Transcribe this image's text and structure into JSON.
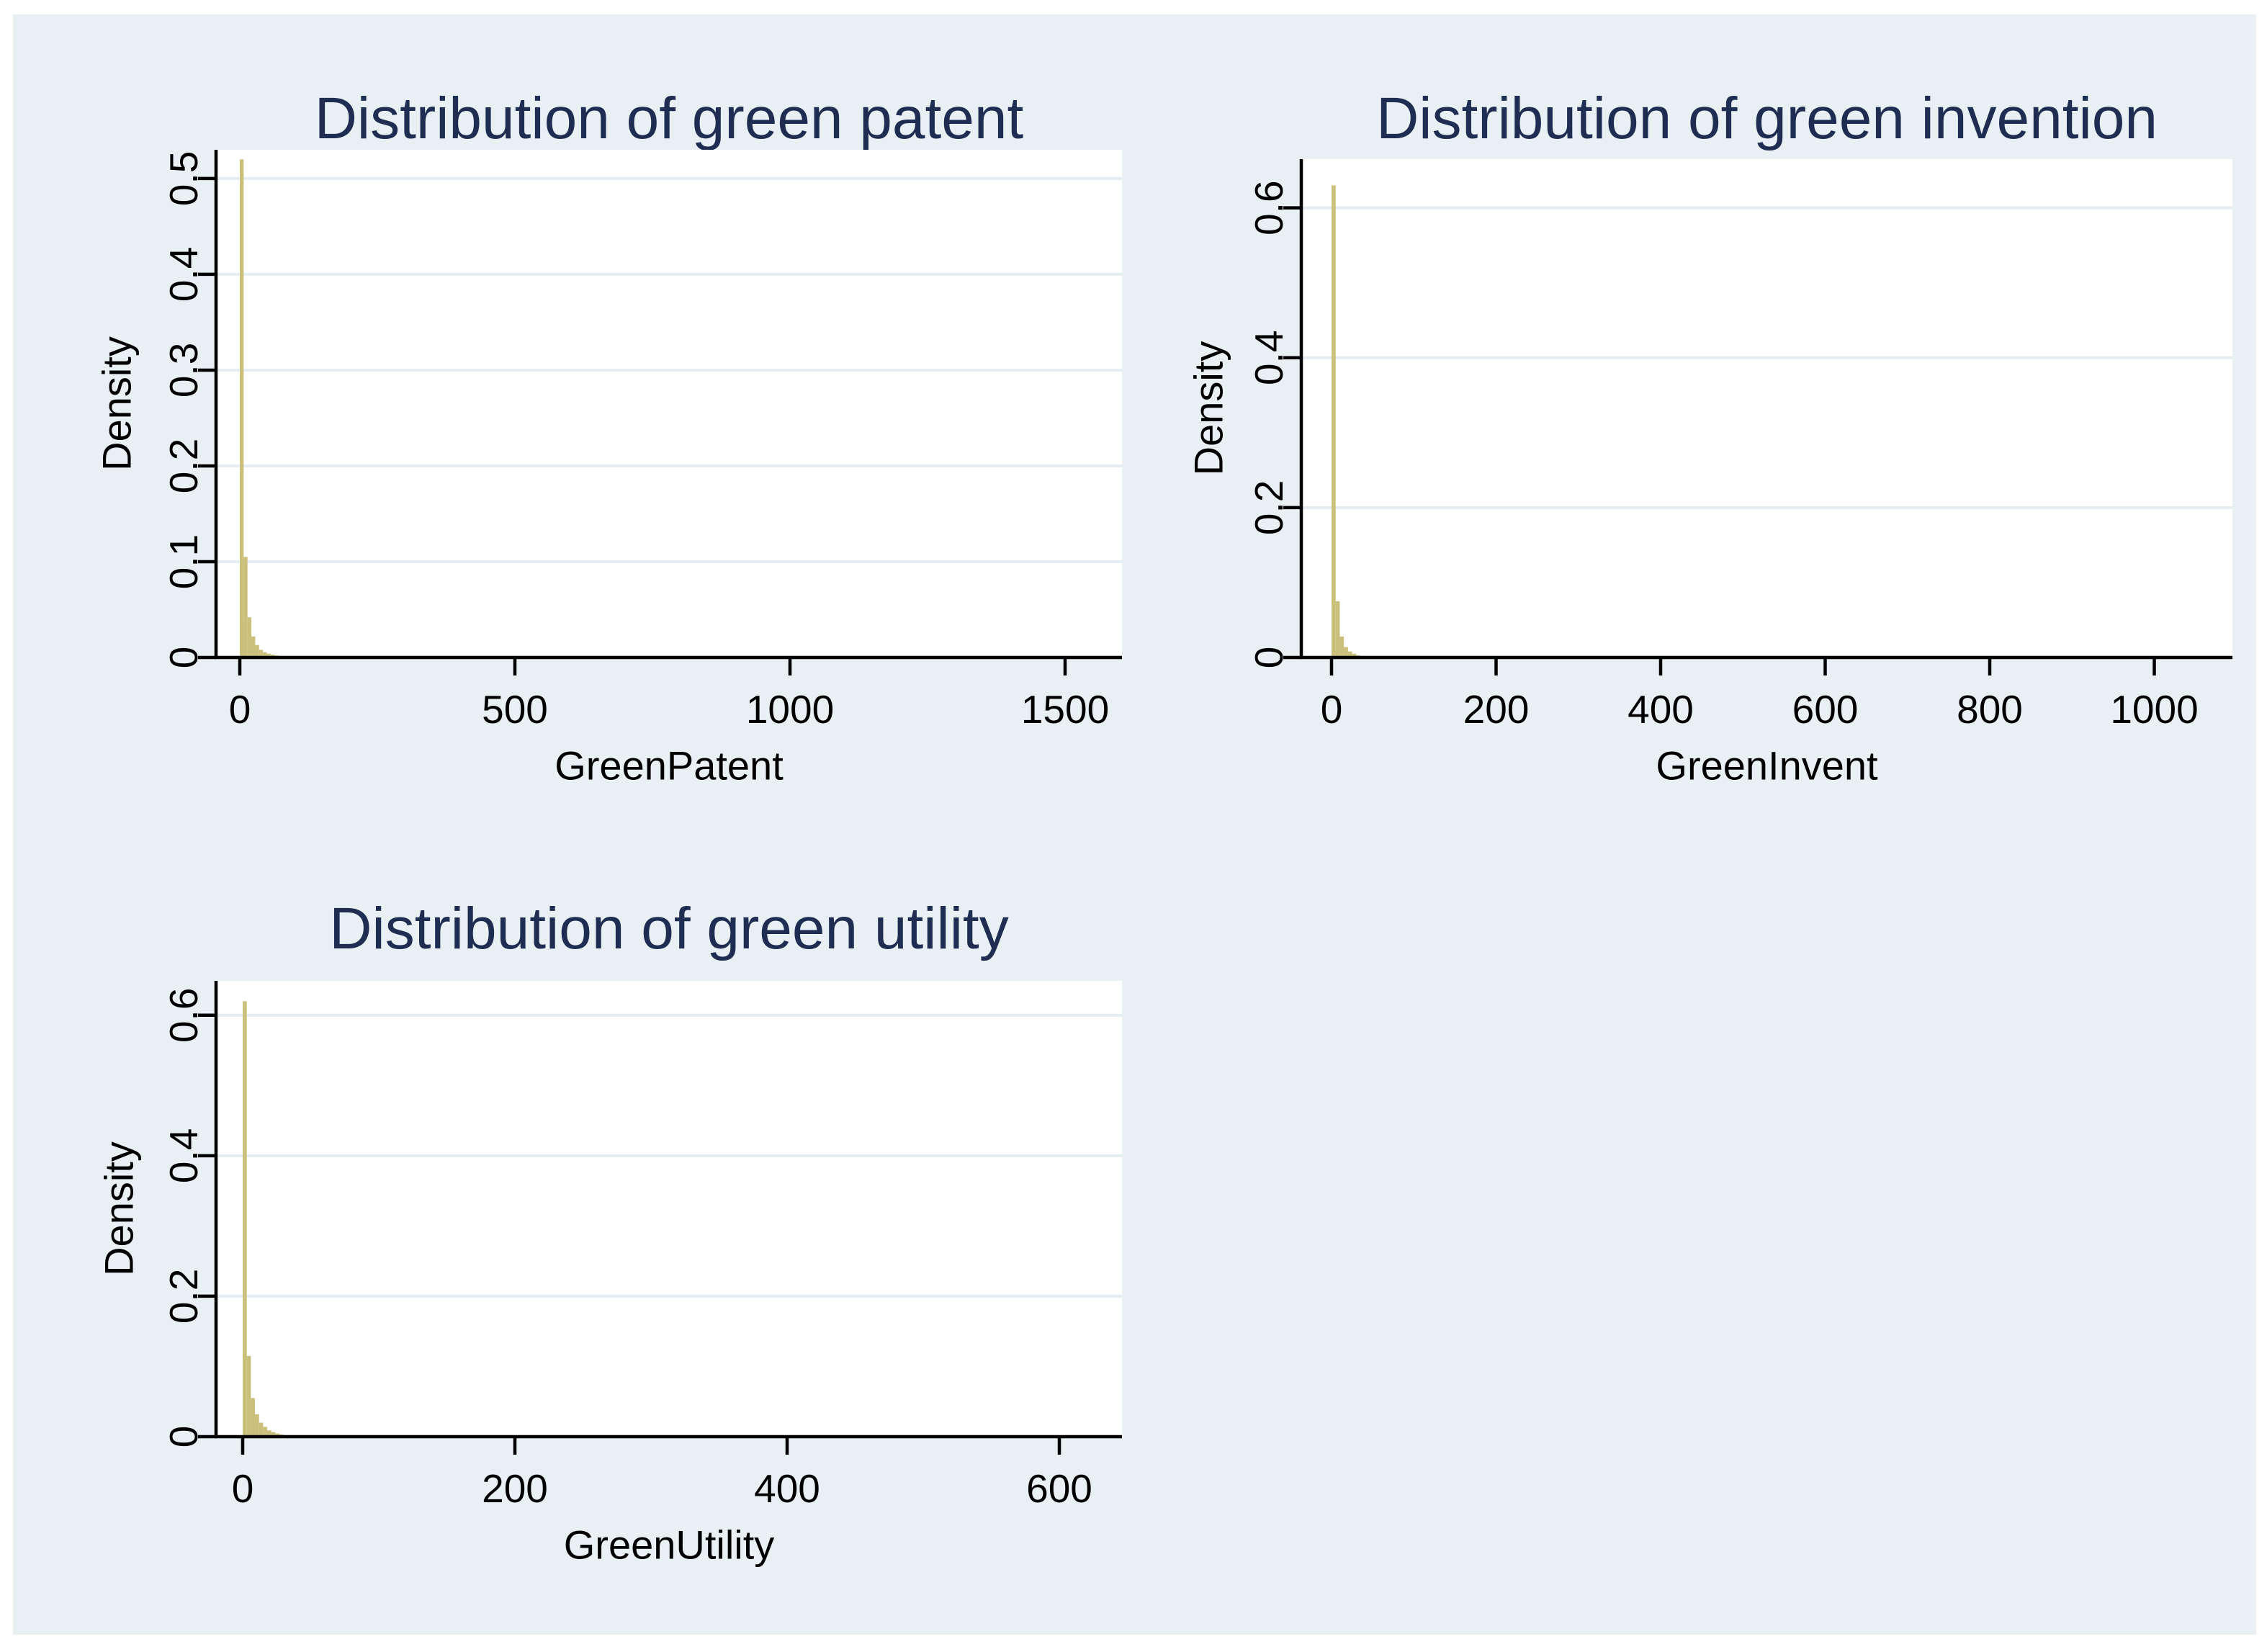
{
  "figure": {
    "background_color": "#E8F0F3",
    "plot_background_color": "#FFFFFF",
    "grid_color": "#E4EDF1",
    "axis_color": "#000000",
    "title_color": "#1F2D52",
    "bar_color": "#CAC07C"
  },
  "chart_data": [
    {
      "type": "bar",
      "title": "Distribution of green patent",
      "xlabel": "GreenPatent",
      "ylabel": "Density",
      "xlim": [
        -43,
        1600
      ],
      "ylim": [
        0,
        0.53
      ],
      "xticks": [
        0,
        500,
        1000,
        1500
      ],
      "yticks": [
        0,
        0.1,
        0.2,
        0.3,
        0.4,
        0.5
      ],
      "ytick_labels": [
        "0",
        "0.1",
        "0.2",
        "0.3",
        "0.4",
        "0.5"
      ],
      "grid": true,
      "legend": "none",
      "bin_start": 0,
      "bin_width": 7,
      "densities": [
        0.52,
        0.105,
        0.042,
        0.022,
        0.013,
        0.008,
        0.0055,
        0.004,
        0.003,
        0.0022,
        0.0016,
        0.0012,
        0.0009,
        0.0006,
        0.0004
      ]
    },
    {
      "type": "bar",
      "title": "Distribution of green invention",
      "xlabel": "GreenInvent",
      "ylabel": "Density",
      "xlim": [
        -37,
        1095
      ],
      "ylim": [
        0,
        0.665
      ],
      "xticks": [
        0,
        200,
        400,
        600,
        800,
        1000
      ],
      "yticks": [
        0,
        0.2,
        0.4,
        0.6
      ],
      "ytick_labels": [
        "0",
        "0.2",
        "0.4",
        "0.6"
      ],
      "grid": true,
      "legend": "none",
      "bin_start": 0,
      "bin_width": 5,
      "densities": [
        0.63,
        0.075,
        0.028,
        0.014,
        0.008,
        0.005,
        0.003,
        0.002,
        0.0013,
        0.0009,
        0.0006
      ]
    },
    {
      "type": "bar",
      "title": "Distribution of green utility",
      "xlabel": "GreenUtility",
      "ylabel": "Density",
      "xlim": [
        -23,
        645
      ],
      "ylim": [
        0,
        0.649
      ],
      "xticks": [
        0,
        200,
        400,
        600
      ],
      "yticks": [
        0,
        0.2,
        0.4,
        0.6
      ],
      "ytick_labels": [
        "0",
        "0.2",
        "0.4",
        "0.6"
      ],
      "grid": true,
      "legend": "none",
      "bin_start": 0,
      "bin_width": 3,
      "densities": [
        0.62,
        0.115,
        0.055,
        0.032,
        0.02,
        0.014,
        0.009,
        0.0065,
        0.0045,
        0.0032,
        0.0022,
        0.0016,
        0.0012,
        0.0008,
        0.0006,
        0.0004
      ]
    }
  ]
}
